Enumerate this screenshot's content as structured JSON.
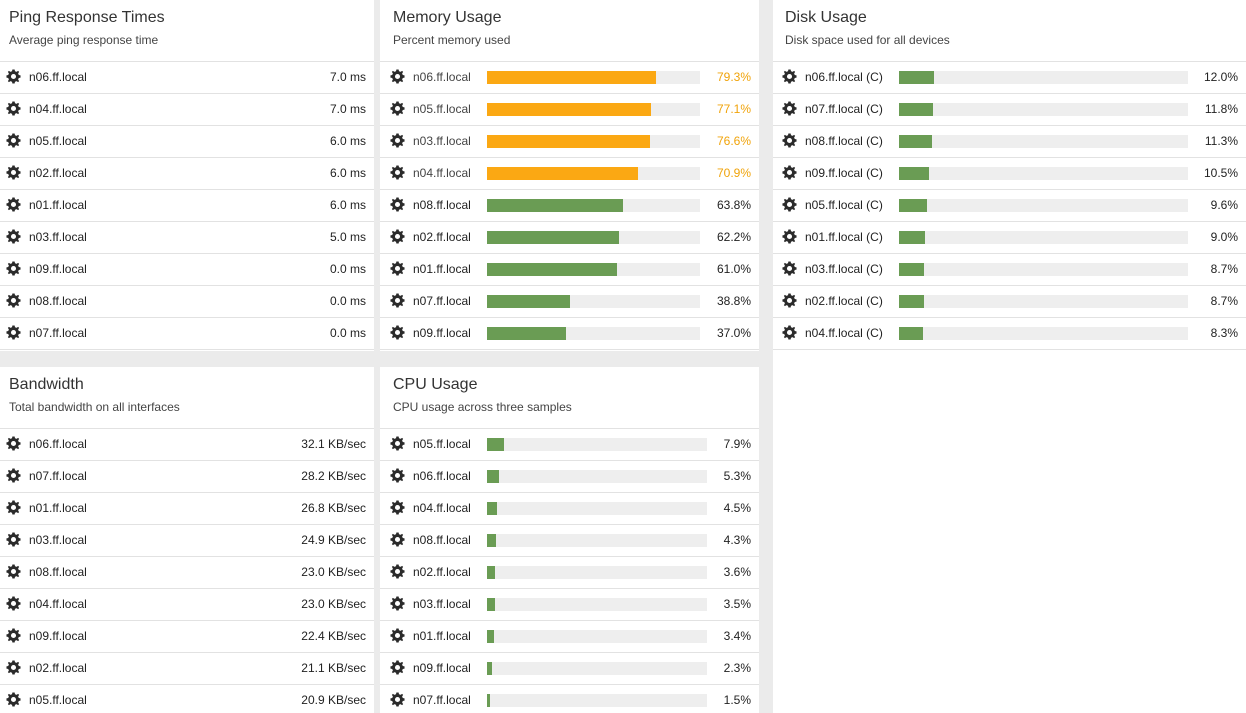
{
  "colors": {
    "ok_bar": "#6a9c54",
    "warn_bar": "#fba813",
    "warn_text": "#f0a30a",
    "track": "#eeeeee",
    "background": "#ebebeb"
  },
  "ping": {
    "title": "Ping Response Times",
    "subtitle": "Average ping response time",
    "rows": [
      {
        "name": "n06.ff.local",
        "value": "7.0 ms"
      },
      {
        "name": "n04.ff.local",
        "value": "7.0 ms"
      },
      {
        "name": "n05.ff.local",
        "value": "6.0 ms"
      },
      {
        "name": "n02.ff.local",
        "value": "6.0 ms"
      },
      {
        "name": "n01.ff.local",
        "value": "6.0 ms"
      },
      {
        "name": "n03.ff.local",
        "value": "5.0 ms"
      },
      {
        "name": "n09.ff.local",
        "value": "0.0 ms"
      },
      {
        "name": "n08.ff.local",
        "value": "0.0 ms"
      },
      {
        "name": "n07.ff.local",
        "value": "0.0 ms"
      }
    ]
  },
  "memory": {
    "title": "Memory Usage",
    "subtitle": "Percent memory used",
    "rows": [
      {
        "name": "n06.ff.local",
        "value": "79.3%",
        "percent": 79.3,
        "warn": true
      },
      {
        "name": "n05.ff.local",
        "value": "77.1%",
        "percent": 77.1,
        "warn": true
      },
      {
        "name": "n03.ff.local",
        "value": "76.6%",
        "percent": 76.6,
        "warn": true
      },
      {
        "name": "n04.ff.local",
        "value": "70.9%",
        "percent": 70.9,
        "warn": true
      },
      {
        "name": "n08.ff.local",
        "value": "63.8%",
        "percent": 63.8,
        "warn": false
      },
      {
        "name": "n02.ff.local",
        "value": "62.2%",
        "percent": 62.2,
        "warn": false
      },
      {
        "name": "n01.ff.local",
        "value": "61.0%",
        "percent": 61.0,
        "warn": false
      },
      {
        "name": "n07.ff.local",
        "value": "38.8%",
        "percent": 38.8,
        "warn": false
      },
      {
        "name": "n09.ff.local",
        "value": "37.0%",
        "percent": 37.0,
        "warn": false
      }
    ]
  },
  "disk": {
    "title": "Disk Usage",
    "subtitle": "Disk space used for all devices",
    "rows": [
      {
        "name": "n06.ff.local (C)",
        "value": "12.0%",
        "percent": 12.0
      },
      {
        "name": "n07.ff.local (C)",
        "value": "11.8%",
        "percent": 11.8
      },
      {
        "name": "n08.ff.local (C)",
        "value": "11.3%",
        "percent": 11.3
      },
      {
        "name": "n09.ff.local (C)",
        "value": "10.5%",
        "percent": 10.5
      },
      {
        "name": "n05.ff.local (C)",
        "value": "9.6%",
        "percent": 9.6
      },
      {
        "name": "n01.ff.local (C)",
        "value": "9.0%",
        "percent": 9.0
      },
      {
        "name": "n03.ff.local (C)",
        "value": "8.7%",
        "percent": 8.7
      },
      {
        "name": "n02.ff.local (C)",
        "value": "8.7%",
        "percent": 8.7
      },
      {
        "name": "n04.ff.local (C)",
        "value": "8.3%",
        "percent": 8.3
      }
    ]
  },
  "bandwidth": {
    "title": "Bandwidth",
    "subtitle": "Total bandwidth on all interfaces",
    "rows": [
      {
        "name": "n06.ff.local",
        "value": "32.1 KB/sec"
      },
      {
        "name": "n07.ff.local",
        "value": "28.2 KB/sec"
      },
      {
        "name": "n01.ff.local",
        "value": "26.8 KB/sec"
      },
      {
        "name": "n03.ff.local",
        "value": "24.9 KB/sec"
      },
      {
        "name": "n08.ff.local",
        "value": "23.0 KB/sec"
      },
      {
        "name": "n04.ff.local",
        "value": "23.0 KB/sec"
      },
      {
        "name": "n09.ff.local",
        "value": "22.4 KB/sec"
      },
      {
        "name": "n02.ff.local",
        "value": "21.1 KB/sec"
      },
      {
        "name": "n05.ff.local",
        "value": "20.9 KB/sec"
      }
    ]
  },
  "cpu": {
    "title": "CPU Usage",
    "subtitle": "CPU usage across three samples",
    "rows": [
      {
        "name": "n05.ff.local",
        "value": "7.9%",
        "percent": 7.9
      },
      {
        "name": "n06.ff.local",
        "value": "5.3%",
        "percent": 5.3
      },
      {
        "name": "n04.ff.local",
        "value": "4.5%",
        "percent": 4.5
      },
      {
        "name": "n08.ff.local",
        "value": "4.3%",
        "percent": 4.3
      },
      {
        "name": "n02.ff.local",
        "value": "3.6%",
        "percent": 3.6
      },
      {
        "name": "n03.ff.local",
        "value": "3.5%",
        "percent": 3.5
      },
      {
        "name": "n01.ff.local",
        "value": "3.4%",
        "percent": 3.4
      },
      {
        "name": "n09.ff.local",
        "value": "2.3%",
        "percent": 2.3
      },
      {
        "name": "n07.ff.local",
        "value": "1.5%",
        "percent": 1.5
      }
    ]
  }
}
